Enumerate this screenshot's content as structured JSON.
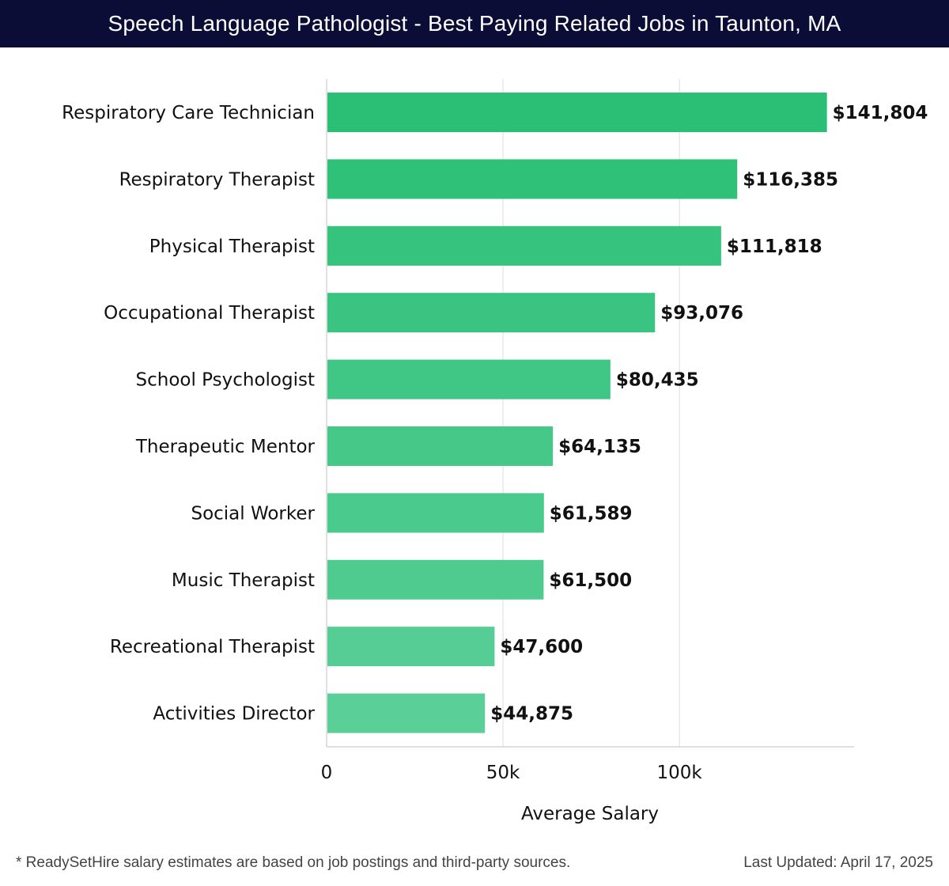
{
  "chart_data": {
    "type": "bar",
    "orientation": "horizontal",
    "title": "Speech Language Pathologist - Best Paying Related Jobs in Taunton, MA",
    "categories": [
      "Respiratory Care Technician",
      "Respiratory Therapist",
      "Physical Therapist",
      "Occupational Therapist",
      "School Psychologist",
      "Therapeutic Mentor",
      "Social Worker",
      "Music Therapist",
      "Recreational Therapist",
      "Activities Director"
    ],
    "values": [
      141804,
      116385,
      111818,
      93076,
      80435,
      64135,
      61589,
      61500,
      47600,
      44875
    ],
    "value_labels": [
      "$141,804",
      "$116,385",
      "$111,818",
      "$93,076",
      "$80,435",
      "$64,135",
      "$61,589",
      "$61,500",
      "$47,600",
      "$44,875"
    ],
    "xlabel": "Average Salary",
    "ylabel": "",
    "xlim": [
      0,
      149500
    ],
    "xticks": [
      0,
      50000,
      100000
    ],
    "xtick_labels": [
      "0",
      "50k",
      "100k"
    ],
    "grid": true,
    "colors": {
      "bar_top": "#2bbf75",
      "bar_bottom": "#5acf98",
      "grid": "#e2e2e2",
      "axis": "#cccccc"
    }
  },
  "footer": {
    "note": "* ReadySetHire salary estimates are based on job postings and third-party sources.",
    "updated": "Last Updated: April 17, 2025"
  }
}
